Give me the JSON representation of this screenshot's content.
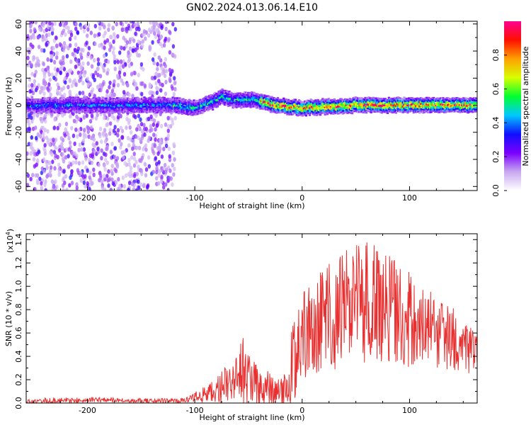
{
  "figure": {
    "title": "GN02.2024.013.06.14.E10"
  },
  "chart_data": [
    {
      "type": "heatmap",
      "title": "",
      "xlabel": "Height of straight line (km)",
      "ylabel": "Frequency (Hz)",
      "xlim": [
        -257,
        163
      ],
      "ylim": [
        -63,
        62
      ],
      "x_ticks": [
        -200,
        -100,
        0,
        100
      ],
      "y_ticks": [
        -60,
        -40,
        -20,
        0,
        20,
        40,
        60
      ],
      "grid": false,
      "ridge": {
        "x": [
          -257,
          -200,
          -150,
          -120,
          -100,
          -85,
          -75,
          -65,
          -55,
          -45,
          -35,
          -25,
          0,
          50,
          100,
          163
        ],
        "freq": [
          0,
          0,
          0,
          0,
          -2,
          2,
          6,
          4,
          4,
          4,
          2,
          0,
          -2,
          0,
          0,
          0
        ]
      },
      "colorbar": {
        "label": "Normalized spectral amplitude",
        "range": [
          0.0,
          1.0
        ],
        "ticks": [
          "0.0",
          "0.2",
          "0.4",
          "0.6",
          "0.8"
        ],
        "colors": [
          "#ffffff",
          "#c8a8f0",
          "#7a00ff",
          "#1010ff",
          "#00c8ff",
          "#00ff30",
          "#d8ff00",
          "#ffa000",
          "#ff1000",
          "#ff0090"
        ]
      }
    },
    {
      "type": "line",
      "title": "",
      "xlabel": "Height of straight line (km)",
      "ylabel": "SNR (10 * v/v)",
      "scale_label": "(x10",
      "scale_exp": "4",
      "scale_close": ")",
      "xlim": [
        -257,
        163
      ],
      "ylim": [
        0,
        1.45
      ],
      "x_ticks": [
        -200,
        -100,
        0,
        100
      ],
      "y_ticks": [
        "0.0",
        "0.2",
        "0.4",
        "0.6",
        "0.8",
        "1.0",
        "1.2",
        "1.4"
      ],
      "grid": false,
      "series": [
        {
          "color": "#e83030",
          "x": [
            -257,
            -230,
            -200,
            -150,
            -110,
            -100,
            -90,
            -80,
            -70,
            -60,
            -55,
            -50,
            -40,
            -30,
            -20,
            -15,
            -10,
            -5,
            0,
            10,
            20,
            30,
            40,
            50,
            60,
            70,
            80,
            90,
            100,
            110,
            120,
            130,
            140,
            150,
            163
          ],
          "base": [
            0.01,
            0.02,
            0.03,
            0.02,
            0.02,
            0.05,
            0.08,
            0.1,
            0.15,
            0.22,
            0.28,
            0.22,
            0.15,
            0.12,
            0.1,
            0.12,
            0.3,
            0.45,
            0.55,
            0.65,
            0.7,
            0.78,
            0.82,
            0.85,
            0.88,
            0.86,
            0.8,
            0.78,
            0.72,
            0.68,
            0.62,
            0.58,
            0.55,
            0.5,
            0.45
          ],
          "amp": [
            0.02,
            0.03,
            0.02,
            0.02,
            0.02,
            0.04,
            0.08,
            0.12,
            0.18,
            0.25,
            0.3,
            0.25,
            0.18,
            0.14,
            0.1,
            0.15,
            0.35,
            0.45,
            0.45,
            0.45,
            0.48,
            0.5,
            0.5,
            0.55,
            0.55,
            0.5,
            0.48,
            0.45,
            0.42,
            0.38,
            0.35,
            0.3,
            0.28,
            0.25,
            0.22
          ]
        }
      ]
    }
  ]
}
